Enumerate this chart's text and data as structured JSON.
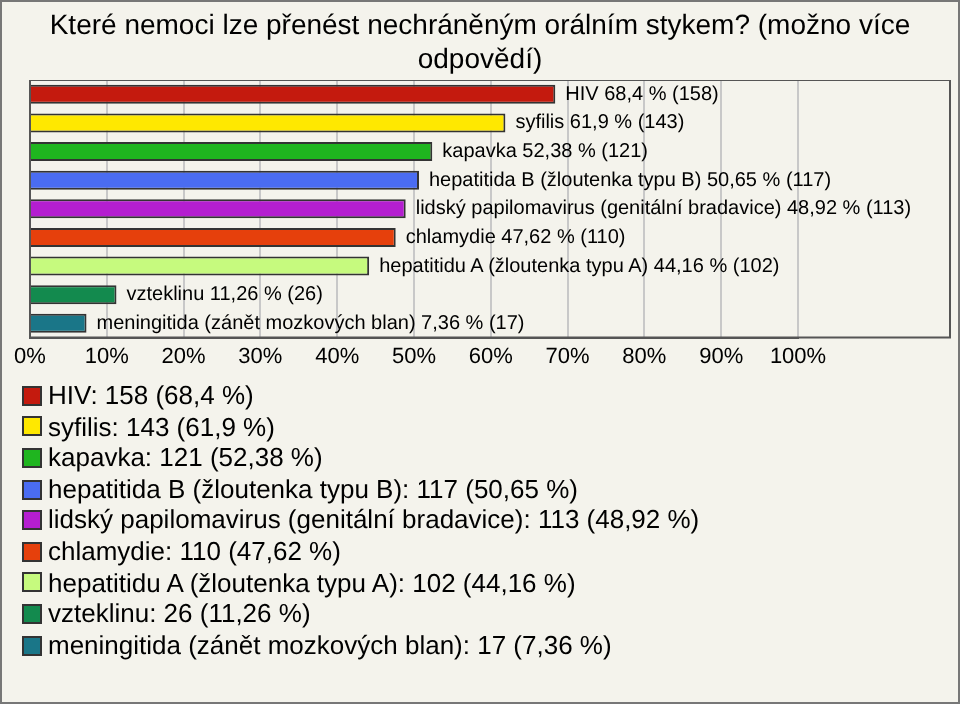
{
  "chart_data": {
    "type": "bar",
    "title": "Které nemoci lze přenést nechráněným orálním stykem? (možno více odpovědí)",
    "orientation": "horizontal",
    "stacked": true,
    "categories": [
      null,
      null,
      null,
      null,
      null,
      null,
      null,
      null,
      null
    ],
    "series": [
      {
        "name": "HIV: 158 (68,4 %)",
        "color": "#c41a0e",
        "values": [
          68.4,
          null,
          null,
          null,
          null,
          null,
          null,
          null,
          null
        ],
        "value_labels": [
          "HIV 68,4 % (158)",
          null,
          null,
          null,
          null,
          null,
          null,
          null,
          null
        ]
      },
      {
        "name": "syfilis: 143 (61,9 %)",
        "color": "#ffe800",
        "values": [
          null,
          61.9,
          null,
          null,
          null,
          null,
          null,
          null,
          null
        ],
        "value_labels": [
          null,
          "syfilis 61,9 % (143)",
          null,
          null,
          null,
          null,
          null,
          null,
          null
        ]
      },
      {
        "name": "kapavka: 121 (52,38 %)",
        "color": "#1fb51f",
        "values": [
          null,
          null,
          52.38,
          null,
          null,
          null,
          null,
          null,
          null
        ],
        "value_labels": [
          null,
          null,
          "kapavka 52,38 % (121)",
          null,
          null,
          null,
          null,
          null,
          null
        ]
      },
      {
        "name": "hepatitida B (žloutenka typu B): 117 (50,65 %)",
        "color": "#4a6cf2",
        "values": [
          null,
          null,
          null,
          50.65,
          null,
          null,
          null,
          null,
          null
        ],
        "value_labels": [
          null,
          null,
          null,
          "hepatitida B (žloutenka typu B) 50,65 % (117)",
          null,
          null,
          null,
          null,
          null
        ]
      },
      {
        "name": "lidský papilomavirus (genitální bradavice): 113 (48,92 %)",
        "color": "#b41ed0",
        "values": [
          null,
          null,
          null,
          null,
          48.92,
          null,
          null,
          null,
          null
        ],
        "value_labels": [
          null,
          null,
          null,
          null,
          "lidský papilomavirus (genitální bradavice) 48,92 % (113)",
          null,
          null,
          null,
          null
        ]
      },
      {
        "name": "chlamydie: 110 (47,62 %)",
        "color": "#e6400c",
        "values": [
          null,
          null,
          null,
          null,
          null,
          47.62,
          null,
          null,
          null
        ],
        "value_labels": [
          null,
          null,
          null,
          null,
          null,
          "chlamydie 47,62 % (110)",
          null,
          null,
          null
        ]
      },
      {
        "name": "hepatitidu A (žloutenka typu A): 102 (44,16 %)",
        "color": "#c6fa7e",
        "values": [
          null,
          null,
          null,
          null,
          null,
          null,
          44.16,
          null,
          null
        ],
        "value_labels": [
          null,
          null,
          null,
          null,
          null,
          null,
          "hepatitidu A (žloutenka typu A) 44,16 % (102)",
          null,
          null
        ]
      },
      {
        "name": "vzteklinu: 26 (11,26 %)",
        "color": "#138a4e",
        "values": [
          null,
          null,
          null,
          null,
          null,
          null,
          null,
          11.26,
          null
        ],
        "value_labels": [
          null,
          null,
          null,
          null,
          null,
          null,
          null,
          "vzteklinu 11,26 % (26)",
          null
        ]
      },
      {
        "name": "meningitida (zánět mozkových blan): 17 (7,36 %)",
        "color": "#1a7688",
        "values": [
          null,
          null,
          null,
          null,
          null,
          null,
          null,
          null,
          7.36
        ],
        "value_labels": [
          null,
          null,
          null,
          null,
          null,
          null,
          null,
          null,
          "meningitida (zánět mozkových blan) 7,36 % (17)"
        ]
      }
    ],
    "xlim": [
      0,
      100
    ],
    "xticks": [
      {
        "value": 0,
        "label": "0%"
      },
      {
        "value": 10,
        "label": "10%"
      },
      {
        "value": 20,
        "label": "20%"
      },
      {
        "value": 30,
        "label": "30%"
      },
      {
        "value": 40,
        "label": "40%"
      },
      {
        "value": 50,
        "label": "50%"
      },
      {
        "value": 60,
        "label": "60%"
      },
      {
        "value": 70,
        "label": "70%"
      },
      {
        "value": 80,
        "label": "80%"
      },
      {
        "value": 90,
        "label": "90%"
      },
      {
        "value": 100,
        "label": "100%"
      }
    ],
    "grid": "x",
    "legend": "bottom"
  }
}
